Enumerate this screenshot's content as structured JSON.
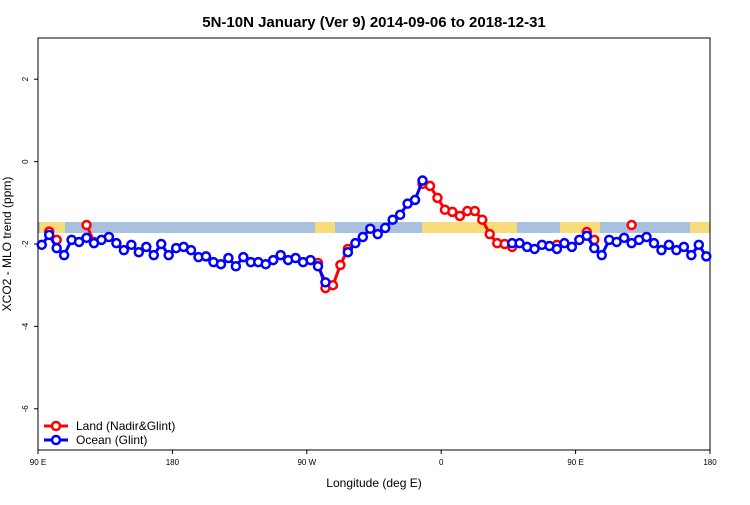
{
  "chart_data": {
    "type": "line",
    "title": "5N-10N January (Ver 9)   2014-09-06 to 2018-12-31",
    "x_label": "Longitude (deg E)",
    "y_label": "XCO2 - MLO trend (ppm)",
    "xlim": [
      90,
      540
    ],
    "ylim": [
      -7,
      3
    ],
    "xticks": [
      {
        "value": 90,
        "label": "90 E"
      },
      180,
      {
        "value": 270,
        "label": "90 W"
      },
      {
        "value": 360,
        "label": "0"
      },
      {
        "value": 450,
        "label": "90 E"
      },
      {
        "value": 540,
        "label": "180"
      }
    ],
    "yticks": [
      -6,
      -4,
      -2,
      0,
      2
    ],
    "legend": "bottomleft",
    "x": [
      92.5,
      97.5,
      102.5,
      107.5,
      112.5,
      117.5,
      122.5,
      127.5,
      132.5,
      137.5,
      142.5,
      147.5,
      152.5,
      157.5,
      162.5,
      167.5,
      172.5,
      177.5,
      182.5,
      187.5,
      192.5,
      197.5,
      202.5,
      207.5,
      212.5,
      217.5,
      222.5,
      227.5,
      232.5,
      237.5,
      242.5,
      247.5,
      252.5,
      257.5,
      262.5,
      267.5,
      272.5,
      277.5,
      282.5,
      287.5,
      292.5,
      297.5,
      302.5,
      307.5,
      312.5,
      317.5,
      322.5,
      327.5,
      332.5,
      337.5,
      342.5,
      347.5,
      352.5,
      357.5,
      362.5,
      367.5,
      372.5,
      377.5,
      382.5,
      387.5,
      392.5,
      397.5,
      402.5,
      407.5,
      412.5,
      417.5,
      422.5,
      427.5,
      432.5,
      437.5,
      442.5,
      447.5,
      452.5,
      457.5,
      462.5,
      467.5,
      472.5,
      477.5,
      482.5,
      487.5,
      492.5,
      497.5,
      502.5,
      507.5,
      512.5,
      517.5,
      522.5,
      527.5,
      532.5,
      537.5
    ],
    "series": [
      {
        "name": "Land (Nadir&Glint)",
        "color": "#ff0000",
        "values": [
          null,
          -1.7,
          -1.9,
          null,
          null,
          null,
          -1.54,
          -1.95,
          null,
          null,
          null,
          null,
          null,
          null,
          null,
          null,
          null,
          null,
          null,
          null,
          null,
          null,
          null,
          null,
          null,
          null,
          null,
          null,
          null,
          null,
          null,
          null,
          null,
          null,
          null,
          null,
          null,
          -2.46,
          -3.07,
          -3.0,
          -2.51,
          -2.12,
          null,
          null,
          null,
          null,
          null,
          null,
          null,
          null,
          null,
          -0.54,
          -0.59,
          -0.88,
          -1.17,
          -1.22,
          -1.32,
          -1.2,
          -1.2,
          -1.41,
          -1.76,
          -1.98,
          -2.0,
          -2.07,
          null,
          null,
          null,
          null,
          null,
          -2.02,
          null,
          null,
          null,
          -1.71,
          -1.9,
          null,
          null,
          null,
          null,
          -1.54,
          null,
          null,
          null,
          null,
          null,
          null,
          null,
          null,
          null,
          null
        ]
      },
      {
        "name": "Ocean (Glint)",
        "color": "#0000ff",
        "values": [
          -2.02,
          -1.78,
          -2.1,
          -2.27,
          -1.9,
          -1.95,
          -1.85,
          -1.98,
          -1.9,
          -1.83,
          -1.98,
          -2.15,
          -2.02,
          -2.2,
          -2.07,
          -2.27,
          -2.0,
          -2.27,
          -2.1,
          -2.07,
          -2.15,
          -2.32,
          -2.3,
          -2.44,
          -2.49,
          -2.34,
          -2.54,
          -2.32,
          -2.44,
          -2.44,
          -2.49,
          -2.39,
          -2.27,
          -2.39,
          -2.34,
          -2.44,
          -2.39,
          -2.54,
          -2.93,
          null,
          null,
          -2.2,
          -1.98,
          -1.83,
          -1.63,
          -1.76,
          -1.61,
          -1.41,
          -1.29,
          -1.02,
          -0.93,
          -0.46,
          null,
          null,
          null,
          null,
          null,
          null,
          null,
          null,
          null,
          null,
          null,
          -1.98,
          -1.98,
          -2.07,
          -2.12,
          -2.02,
          -2.05,
          -2.12,
          -1.98,
          -2.07,
          -1.9,
          -1.8,
          -2.1,
          -2.27,
          -1.9,
          -1.95,
          -1.85,
          -1.98,
          -1.9,
          -1.83,
          -1.98,
          -2.15,
          -2.02,
          -2.15,
          -2.07,
          -2.27,
          -2.02,
          -2.3
        ]
      }
    ]
  }
}
